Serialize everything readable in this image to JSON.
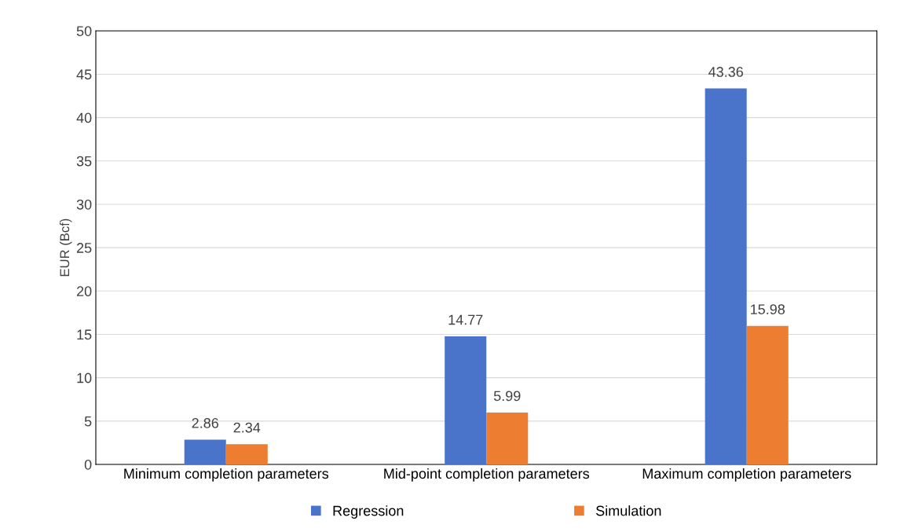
{
  "chart_data": {
    "type": "bar",
    "ylabel": "EUR (Bcf)",
    "categories": [
      "Minimum completion parameters",
      "Mid-point completion parameters",
      "Maximum completion parameters"
    ],
    "series": [
      {
        "name": "Regression",
        "color": "#4a74c9",
        "values": [
          2.86,
          14.77,
          43.36
        ]
      },
      {
        "name": "Simulation",
        "color": "#ed7d31",
        "values": [
          2.34,
          5.99,
          15.98
        ]
      }
    ],
    "ylim": [
      0,
      50
    ],
    "yticks": [
      0,
      5,
      10,
      15,
      20,
      25,
      30,
      35,
      40,
      45,
      50
    ],
    "grid": "y",
    "legend": "bottom",
    "data_labels": true
  }
}
